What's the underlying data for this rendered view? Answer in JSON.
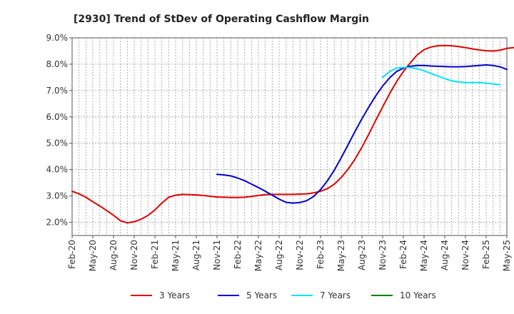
{
  "chart_data": {
    "type": "line",
    "title": "[2930]  Trend of StDev of Operating Cashflow Margin",
    "xlabel": "",
    "ylabel": "",
    "ylim": [
      1.5,
      9.0
    ],
    "yticks": [
      2.0,
      3.0,
      4.0,
      5.0,
      6.0,
      7.0,
      8.0,
      9.0
    ],
    "ytick_labels": [
      "2.0%",
      "3.0%",
      "4.0%",
      "5.0%",
      "6.0%",
      "7.0%",
      "8.0%",
      "9.0%"
    ],
    "xtick_labels": [
      "Feb-20",
      "May-20",
      "Aug-20",
      "Nov-20",
      "Feb-21",
      "May-21",
      "Aug-21",
      "Nov-21",
      "Feb-22",
      "May-22",
      "Aug-22",
      "Nov-22",
      "Feb-23",
      "May-23",
      "Aug-23",
      "Nov-23",
      "Feb-24",
      "May-24",
      "Aug-24",
      "Nov-24",
      "Feb-25",
      "May-25"
    ],
    "grid": true,
    "legend_position": "bottom",
    "series": [
      {
        "name": "3 Years",
        "color": "#e00000",
        "start_month": 0,
        "values": [
          3.18,
          3.08,
          2.95,
          2.78,
          2.62,
          2.45,
          2.27,
          2.06,
          1.98,
          2.02,
          2.12,
          2.26,
          2.47,
          2.73,
          2.95,
          3.03,
          3.06,
          3.05,
          3.04,
          3.02,
          2.99,
          2.96,
          2.95,
          2.94,
          2.94,
          2.95,
          2.98,
          3.02,
          3.05,
          3.06,
          3.06,
          3.06,
          3.06,
          3.07,
          3.08,
          3.12,
          3.18,
          3.28,
          3.45,
          3.7,
          4.02,
          4.4,
          4.85,
          5.35,
          5.87,
          6.38,
          6.88,
          7.33,
          7.72,
          8.05,
          8.35,
          8.55,
          8.65,
          8.7,
          8.71,
          8.7,
          8.67,
          8.63,
          8.58,
          8.54,
          8.51,
          8.5,
          8.53,
          8.6,
          8.63,
          8.6,
          8.5
        ]
      },
      {
        "name": "5 Years",
        "color": "#0000cc",
        "start_month": 21,
        "values": [
          3.82,
          3.8,
          3.76,
          3.68,
          3.58,
          3.45,
          3.32,
          3.18,
          3.03,
          2.88,
          2.76,
          2.73,
          2.75,
          2.82,
          2.98,
          3.24,
          3.58,
          3.98,
          4.45,
          4.95,
          5.45,
          5.93,
          6.38,
          6.8,
          7.17,
          7.48,
          7.72,
          7.85,
          7.92,
          7.95,
          7.95,
          7.93,
          7.92,
          7.91,
          7.9,
          7.9,
          7.91,
          7.93,
          7.95,
          7.97,
          7.95,
          7.9,
          7.8
        ]
      },
      {
        "name": "7 Years",
        "color": "#00e5ee",
        "start_month": 45,
        "values": [
          7.5,
          7.72,
          7.85,
          7.88,
          7.87,
          7.83,
          7.75,
          7.65,
          7.55,
          7.45,
          7.37,
          7.32,
          7.3,
          7.3,
          7.3,
          7.28,
          7.25,
          7.22
        ]
      },
      {
        "name": "10 Years",
        "color": "#008000",
        "start_month": 0,
        "values": []
      }
    ]
  }
}
